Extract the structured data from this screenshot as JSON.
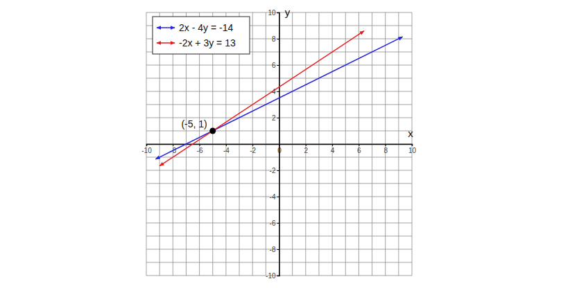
{
  "chart_data": {
    "type": "line",
    "x_label": "x",
    "y_label": "y",
    "xlim": [
      -10,
      10
    ],
    "ylim": [
      -10,
      10
    ],
    "xticks": [
      -10,
      -8,
      -6,
      -4,
      -2,
      0,
      2,
      4,
      6,
      8,
      10
    ],
    "yticks": [
      -10,
      -8,
      -6,
      -4,
      -2,
      2,
      4,
      6,
      8,
      10
    ],
    "grid": true,
    "legend": "upper left",
    "series": [
      {
        "name": "2x - 4y = -14",
        "color": "#2323e0",
        "marker": "arrow",
        "line_style": "solid",
        "x": [
          -9.3,
          9.3
        ],
        "values": [
          -1.15,
          8.15
        ]
      },
      {
        "name": "-2x + 3y = 13",
        "color": "#e81e1e",
        "marker": "arrow",
        "line_style": "solid",
        "x": [
          -9.0,
          6.4
        ],
        "values": [
          -1.67,
          8.6
        ]
      }
    ],
    "annotations": [
      {
        "x": -5,
        "y": 1,
        "text": "(-5, 1)"
      }
    ]
  }
}
